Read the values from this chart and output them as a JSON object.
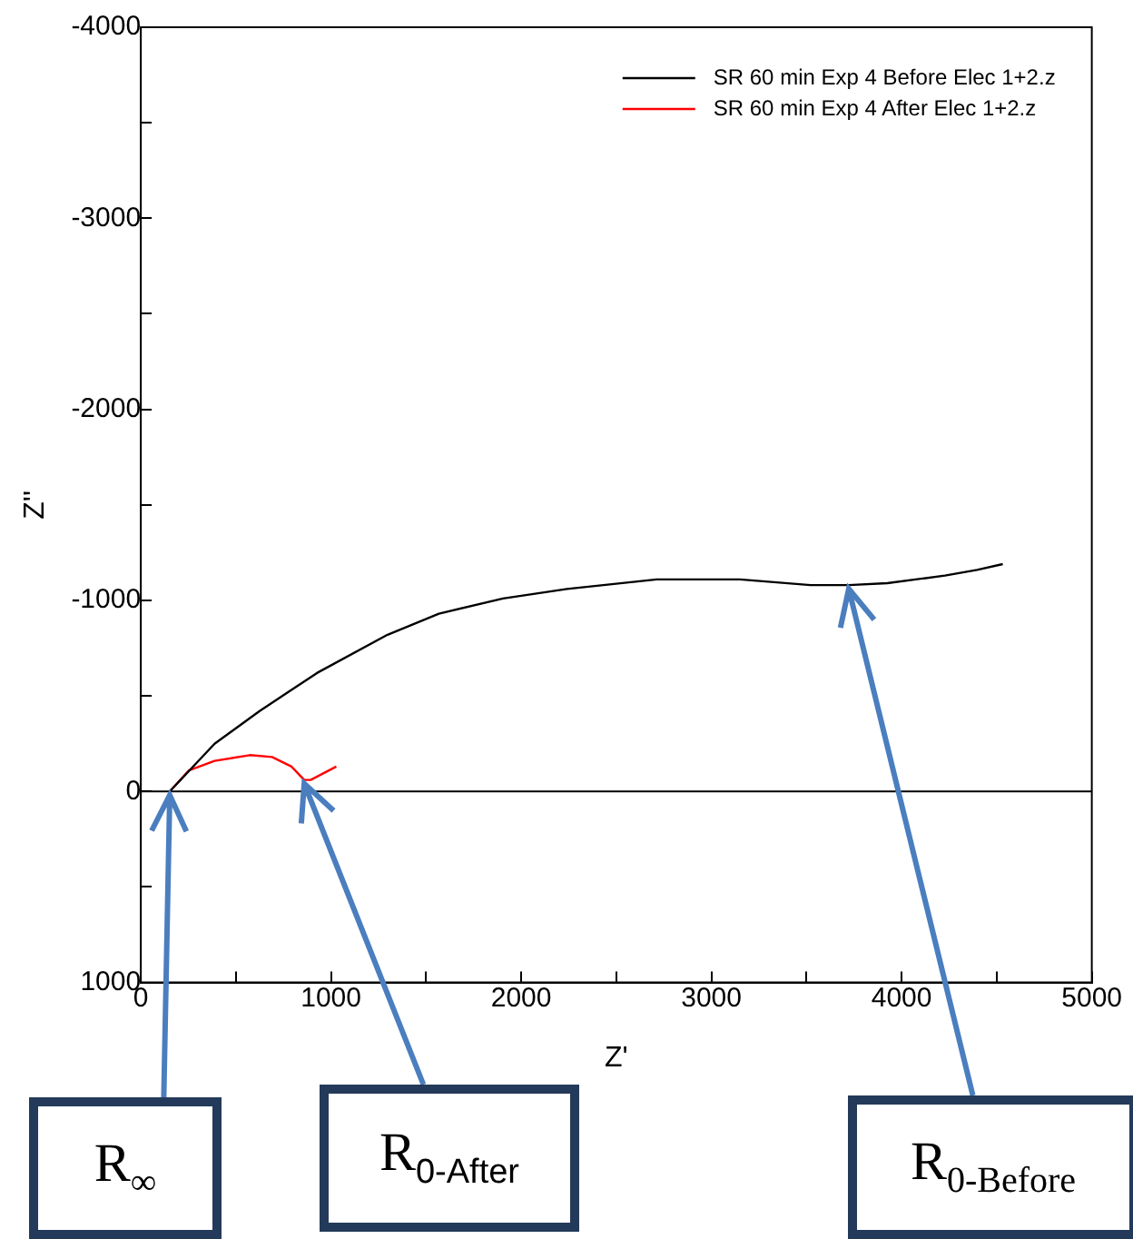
{
  "chart_data": {
    "type": "line",
    "xlabel": "Z'",
    "ylabel": "Z''",
    "xlim": [
      0,
      5000
    ],
    "xticks": [
      0,
      {
        "value": 500,
        "label": null
      },
      1000,
      {
        "value": 1500,
        "label": null
      },
      2000,
      {
        "value": 2500,
        "label": null
      },
      3000,
      {
        "value": 3500,
        "label": null
      },
      4000,
      {
        "value": 4500,
        "label": null
      },
      5000
    ],
    "ylim": [
      1000,
      -4000
    ],
    "yticks": [
      1000,
      {
        "value": 500,
        "label": null
      },
      0,
      {
        "value": -500,
        "label": null
      },
      -1000,
      {
        "value": -1500,
        "label": null
      },
      -2000,
      {
        "value": -2500,
        "label": null
      },
      -3000,
      {
        "value": -3500,
        "label": null
      },
      -4000
    ],
    "grid": false,
    "legend": "top right",
    "marker": "none",
    "line_style": "solid",
    "series": [
      {
        "name": "SR 60 min Exp 4 Before Elec 1+2.z",
        "color": "#000000",
        "x": [
          152,
          388,
          623,
          926,
          1297,
          1567,
          1904,
          2241,
          2712,
          3150,
          3521,
          3722,
          3925,
          4228,
          4397,
          4532
        ],
        "values": [
          0,
          -250,
          -420,
          -620,
          -820,
          -930,
          -1010,
          -1060,
          -1110,
          -1110,
          -1080,
          -1080,
          -1090,
          -1130,
          -1160,
          -1190
        ]
      },
      {
        "name": "SR 60 min Exp 4 After Elec 1+2.z",
        "color": "#ff0000",
        "x": [
          152,
          253,
          388,
          573,
          690,
          792,
          859,
          893,
          1028
        ],
        "values": [
          0,
          -110,
          -160,
          -190,
          -180,
          -130,
          -60,
          -60,
          -130
        ]
      }
    ],
    "ref_lines": [
      {
        "axis": "y",
        "value": 0,
        "color": "#000000"
      }
    ],
    "annotations": [
      {
        "text": "R$_{∞}$",
        "x": 152,
        "y": 0
      },
      {
        "text": "R$_{0-After}$",
        "x": 859,
        "y": -60
      },
      {
        "text": "R$_{0-Before}$",
        "x": 3722,
        "y": -1080
      }
    ]
  }
}
